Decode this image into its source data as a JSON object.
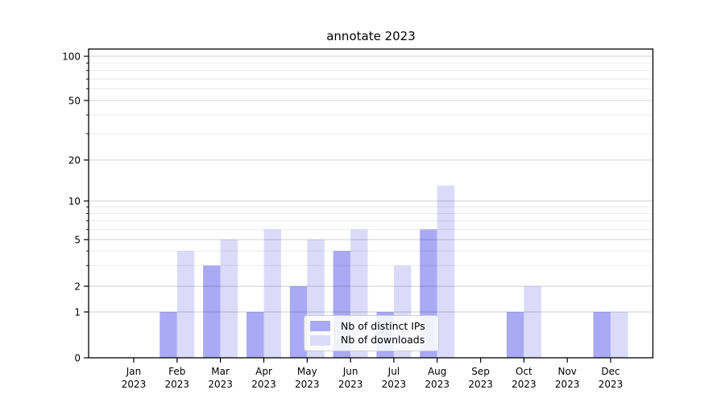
{
  "chart_data": {
    "type": "bar",
    "title": "annotate 2023",
    "year_label": "2023",
    "months": [
      "Jan",
      "Feb",
      "Mar",
      "Apr",
      "May",
      "Jun",
      "Jul",
      "Aug",
      "Sep",
      "Oct",
      "Nov",
      "Dec"
    ],
    "categories": [
      "Jan 2023",
      "Feb 2023",
      "Mar 2023",
      "Apr 2023",
      "May 2023",
      "Jun 2023",
      "Jul 2023",
      "Aug 2023",
      "Sep 2023",
      "Oct 2023",
      "Nov 2023",
      "Dec 2023"
    ],
    "series": [
      {
        "name": "Nb of distinct IPs",
        "color": "#a9a9f5",
        "values": [
          0,
          1,
          3,
          1,
          2,
          4,
          1,
          6,
          0,
          1,
          0,
          1
        ]
      },
      {
        "name": "Nb of downloads",
        "color": "#dbdbf9",
        "values": [
          0,
          4,
          5,
          6,
          5,
          6,
          3,
          13,
          0,
          2,
          0,
          1
        ]
      }
    ],
    "yscale": "symlog",
    "ylim": [
      0,
      112
    ],
    "y_major_ticks": [
      0,
      1,
      2,
      5,
      10,
      20,
      50,
      100
    ],
    "y_minor_ticks": [
      3,
      4,
      6,
      7,
      8,
      9,
      30,
      40,
      60,
      70,
      80,
      90
    ],
    "grid": "horizontal",
    "legend_position": "lower center",
    "colors": {
      "axis": "#000000",
      "text": "#000000",
      "grid_major": "rgba(0,0,0,0.19)",
      "grid_minor": "rgba(0,0,0,0.08)",
      "legend_border": "#cccccc",
      "legend_bg": "rgba(255,255,255,0.85)"
    }
  }
}
